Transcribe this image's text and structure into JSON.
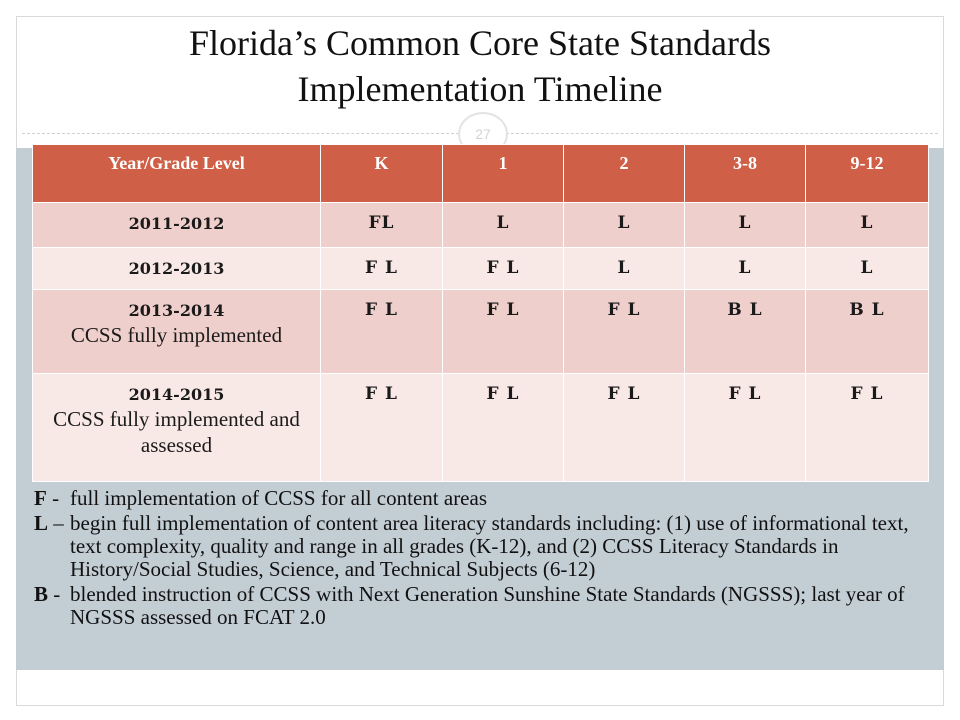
{
  "slide": {
    "title_line1": "Florida’s Common Core State Standards",
    "title_line2": "Implementation Timeline",
    "page_number": "27"
  },
  "table": {
    "headers": [
      "Year/Grade Level",
      "K",
      "1",
      "2",
      "3-8",
      "9-12"
    ],
    "rows": [
      {
        "year": "2011-2012",
        "note": "",
        "values": [
          "FL",
          "L",
          "L",
          "L",
          "L"
        ]
      },
      {
        "year": "2012-2013",
        "note": "",
        "values": [
          "F L",
          "F L",
          "L",
          "L",
          "L"
        ]
      },
      {
        "year": "2013-2014",
        "note": "CCSS fully implemented",
        "values": [
          "F L",
          "F L",
          "F L",
          "B L",
          "B L"
        ]
      },
      {
        "year": "2014-2015",
        "note": "CCSS fully implemented and assessed",
        "values": [
          "F L",
          "F L",
          "F L",
          "F L",
          "F L"
        ]
      }
    ]
  },
  "legend": [
    {
      "key": "F",
      "dash": " - ",
      "text": "full implementation of CCSS for all content areas"
    },
    {
      "key": "L",
      "dash": " – ",
      "text": "begin full implementation of content area literacy standards including: (1) use of informational text, text complexity, quality and range in all grades (K-12), and (2) CCSS Literacy Standards in History/Social Studies, Science, and Technical Subjects (6-12)"
    },
    {
      "key": "B",
      "dash": " - ",
      "text": "blended instruction of CCSS with Next Generation Sunshine State Standards (NGSSS); last year of NGSSS assessed on FCAT 2.0"
    }
  ],
  "colors": {
    "header": "#cf5f46",
    "row_odd": "#efcfcb",
    "row_even": "#f8e8e6",
    "panel": "#c3cdd4"
  }
}
